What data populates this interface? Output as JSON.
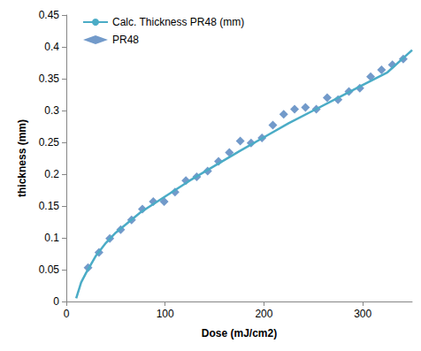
{
  "chart_data": {
    "type": "scatter",
    "x_label": "Dose (mJ/cm2)",
    "y_label": "thickness (mm)",
    "xlim": [
      0,
      350
    ],
    "xticks": [
      0,
      100,
      200,
      300
    ],
    "ylim": [
      0,
      0.45
    ],
    "yticks": [
      0,
      0.05,
      0.1,
      0.15,
      0.2,
      0.25,
      0.3,
      0.35,
      0.4,
      0.45
    ],
    "grid": false,
    "legend": "top-left",
    "series": [
      {
        "name": "Calc. Thickness PR48 (mm)",
        "type": "line",
        "color": "#4bacc6",
        "marker": "none",
        "line_style": "solid",
        "x": [
          10,
          15,
          20,
          30,
          40,
          50,
          75,
          100,
          125,
          150,
          175,
          200,
          225,
          250,
          275,
          300,
          325,
          350
        ],
        "values": [
          0.005,
          0.03,
          0.045,
          0.072,
          0.092,
          0.108,
          0.14,
          0.165,
          0.19,
          0.213,
          0.236,
          0.258,
          0.28,
          0.3,
          0.32,
          0.34,
          0.36,
          0.395
        ]
      },
      {
        "name": "PR48",
        "type": "scatter",
        "color": "#4f81bd",
        "marker": "diamond",
        "x": [
          22,
          33,
          44,
          55,
          66,
          77,
          88,
          99,
          110,
          121,
          132,
          143,
          154,
          165,
          176,
          187,
          198,
          209,
          220,
          231,
          242,
          253,
          264,
          275,
          286,
          297,
          308,
          319,
          330,
          341
        ],
        "values": [
          0.053,
          0.077,
          0.099,
          0.113,
          0.128,
          0.145,
          0.157,
          0.157,
          0.172,
          0.19,
          0.196,
          0.205,
          0.22,
          0.234,
          0.252,
          0.249,
          0.257,
          0.277,
          0.294,
          0.302,
          0.305,
          0.302,
          0.32,
          0.317,
          0.33,
          0.335,
          0.353,
          0.364,
          0.372,
          0.381
        ]
      }
    ]
  }
}
